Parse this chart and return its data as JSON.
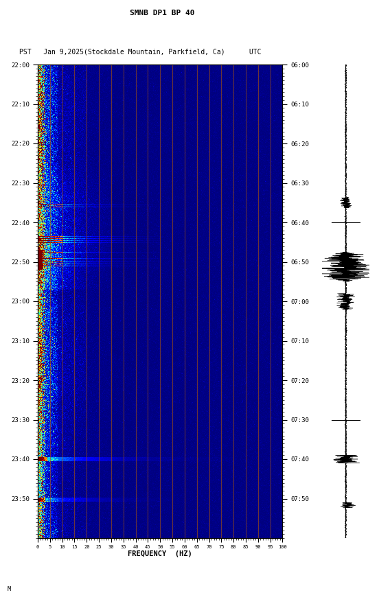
{
  "title_line1": "SMNB DP1 BP 40",
  "title_line2": "PST   Jan 9,2025(Stockdale Mountain, Parkfield, Ca)      UTC",
  "xlabel": "FREQUENCY  (HZ)",
  "freq_ticks": [
    0,
    5,
    10,
    15,
    20,
    25,
    30,
    35,
    40,
    45,
    50,
    55,
    60,
    65,
    70,
    75,
    80,
    85,
    90,
    95,
    100
  ],
  "time_labels_left": [
    "22:00",
    "22:10",
    "22:20",
    "22:30",
    "22:40",
    "22:50",
    "23:00",
    "23:10",
    "23:20",
    "23:30",
    "23:40",
    "23:50"
  ],
  "time_labels_right": [
    "06:00",
    "06:10",
    "06:20",
    "06:30",
    "06:40",
    "06:50",
    "07:00",
    "07:10",
    "07:20",
    "07:30",
    "07:40",
    "07:50"
  ],
  "freq_line_positions": [
    5,
    10,
    15,
    20,
    25,
    30,
    35,
    40,
    45,
    50,
    55,
    60,
    65,
    70,
    75,
    80,
    85,
    90,
    95,
    100
  ],
  "n_freq": 500,
  "n_time": 720,
  "background_color": "#ffffff",
  "vline_color": "#A05010",
  "vline_alpha": 0.8
}
